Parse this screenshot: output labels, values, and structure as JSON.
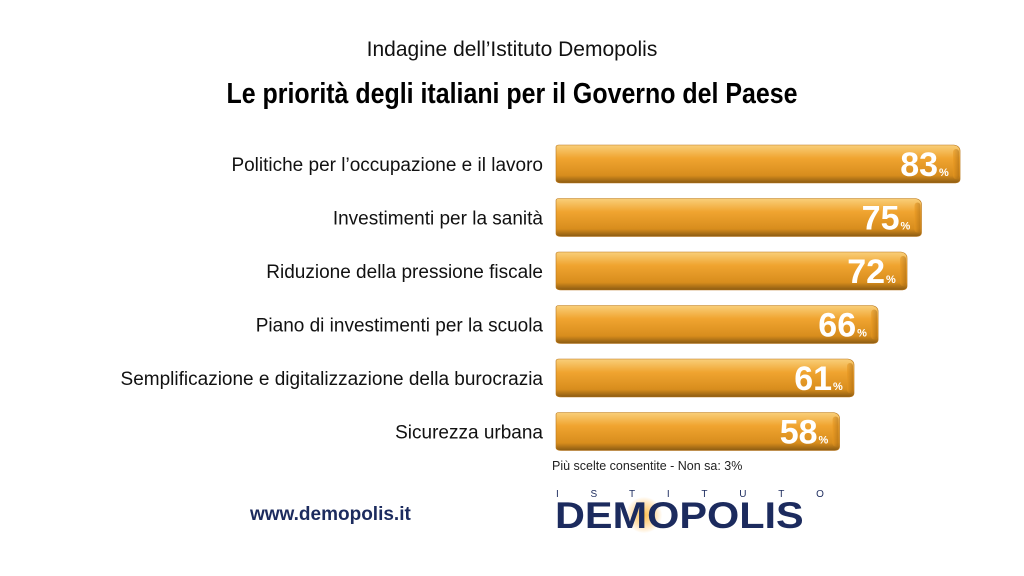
{
  "header": {
    "subtitle": "Indagine dell’Istituto Demopolis",
    "title": "Le priorità degli italiani per il Governo del Paese"
  },
  "chart_data": {
    "type": "bar",
    "orientation": "horizontal",
    "title": "Le priorità degli italiani per il Governo del Paese",
    "subtitle": "Indagine dell’Istituto Demopolis",
    "categories": [
      "Politiche per l’occupazione e il lavoro",
      "Investimenti per la sanità",
      "Riduzione della pressione fiscale",
      "Piano di investimenti per la scuola",
      "Semplificazione e digitalizzazione della burocrazia",
      "Sicurezza urbana"
    ],
    "values": [
      83,
      75,
      72,
      66,
      61,
      58
    ],
    "value_suffix": "%",
    "bar_color": "#f0a430",
    "xlim": [
      0,
      100
    ],
    "grid": false
  },
  "note": "Più scelte consentite - Non sa: 3%",
  "footer": {
    "website": "www.demopolis.it",
    "logo_top": [
      "I",
      "S",
      "T",
      "I",
      "T",
      "U",
      "T",
      "O"
    ],
    "logo_main": "DEMOPOLIS"
  }
}
